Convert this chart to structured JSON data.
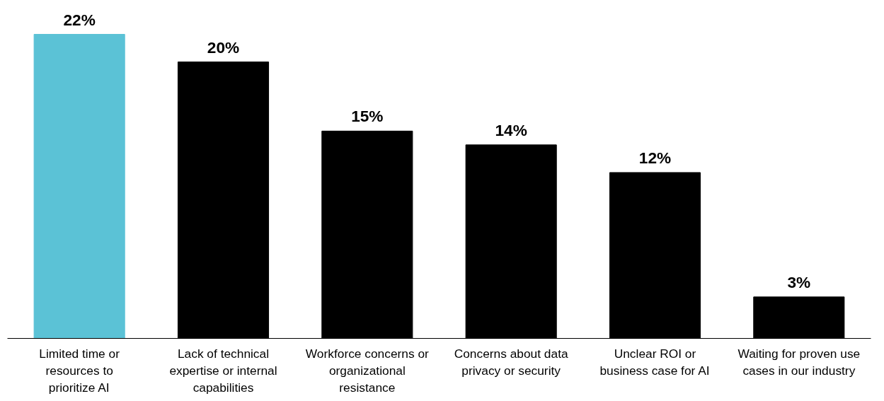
{
  "chart_data": {
    "type": "bar",
    "categories": [
      "Limited time or resources to prioritize AI",
      "Lack of technical expertise or internal capabilities",
      "Workforce concerns or organizational resistance",
      "Concerns about data privacy or security",
      "Unclear ROI or business case for AI",
      "Waiting for proven use cases in our industry"
    ],
    "values": [
      22,
      20,
      15,
      14,
      12,
      3
    ],
    "colors": [
      "#5bc2d6",
      "#000000",
      "#000000",
      "#000000",
      "#000000",
      "#000000"
    ],
    "value_labels": [
      "22%",
      "20%",
      "15%",
      "14%",
      "12%",
      "3%"
    ],
    "tick_labels": "x",
    "grid": false
  }
}
